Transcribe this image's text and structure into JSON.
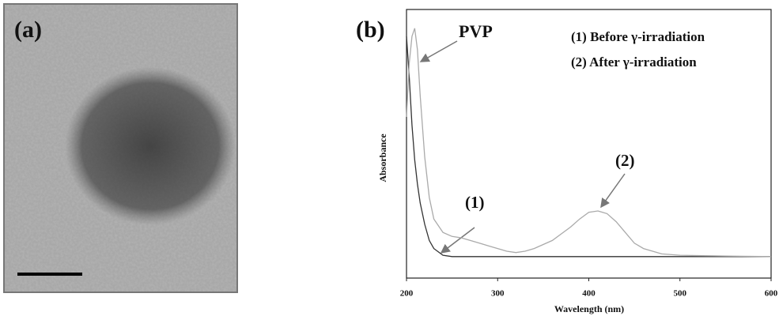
{
  "panel_a": {
    "label": "(a)"
  },
  "chart_data": {
    "type": "line",
    "panel_label": "(b)",
    "xlabel": "Wavelength (nm)",
    "ylabel": "Absorbance",
    "xlim": [
      200,
      600
    ],
    "xticks": [
      200,
      300,
      400,
      500,
      600
    ],
    "ylim": [
      0,
      1
    ],
    "x": [
      200,
      203,
      206,
      209,
      212,
      215,
      220,
      225,
      230,
      240,
      250,
      260,
      270,
      280,
      290,
      300,
      310,
      320,
      330,
      340,
      350,
      360,
      370,
      380,
      390,
      400,
      410,
      420,
      430,
      440,
      450,
      460,
      470,
      480,
      500,
      550,
      600
    ],
    "series": [
      {
        "name": "(1) Before γ-irradiation",
        "color": "#333333",
        "values": [
          0.9,
          0.75,
          0.57,
          0.44,
          0.35,
          0.28,
          0.2,
          0.14,
          0.11,
          0.085,
          0.08,
          0.08,
          0.08,
          0.08,
          0.08,
          0.08,
          0.08,
          0.08,
          0.08,
          0.08,
          0.08,
          0.08,
          0.08,
          0.08,
          0.08,
          0.08,
          0.08,
          0.08,
          0.08,
          0.08,
          0.08,
          0.08,
          0.08,
          0.08,
          0.08,
          0.08,
          0.08
        ]
      },
      {
        "name": "(2) After γ-irradiation",
        "color": "#aaaaaa",
        "values": [
          0.6,
          0.8,
          0.9,
          0.93,
          0.85,
          0.68,
          0.45,
          0.3,
          0.22,
          0.17,
          0.155,
          0.15,
          0.14,
          0.13,
          0.12,
          0.11,
          0.1,
          0.095,
          0.1,
          0.11,
          0.125,
          0.14,
          0.165,
          0.19,
          0.22,
          0.245,
          0.25,
          0.24,
          0.21,
          0.17,
          0.13,
          0.11,
          0.1,
          0.09,
          0.085,
          0.082,
          0.08
        ]
      }
    ],
    "annotations": [
      "PVP",
      "(1)",
      "(2)"
    ]
  }
}
